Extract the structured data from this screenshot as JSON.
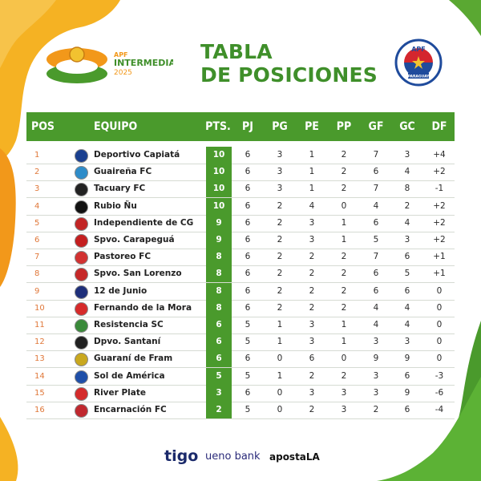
{
  "brand": {
    "league_small": "APF",
    "league_name": "INTERMEDIA",
    "league_year": "2025",
    "federation": "APF",
    "federation_band": "PARAGUAY"
  },
  "title": {
    "line1": "TABLA",
    "line2": "DE POSICIONES"
  },
  "columns": [
    "POS",
    "EQUIPO",
    "PTS.",
    "PJ",
    "PG",
    "PE",
    "PP",
    "GF",
    "GC",
    "DF"
  ],
  "rows": [
    {
      "pos": "1",
      "team": "Deportivo Capiatá",
      "pts": "10",
      "pj": "6",
      "pg": "3",
      "pe": "1",
      "pp": "2",
      "gf": "7",
      "gc": "3",
      "df": "+4",
      "badge_color": "#1a3f8f"
    },
    {
      "pos": "2",
      "team": "Guaireña FC",
      "pts": "10",
      "pj": "6",
      "pg": "3",
      "pe": "1",
      "pp": "2",
      "gf": "6",
      "gc": "4",
      "df": "+2",
      "badge_color": "#2e8cc9"
    },
    {
      "pos": "3",
      "team": "Tacuary FC",
      "pts": "10",
      "pj": "6",
      "pg": "3",
      "pe": "1",
      "pp": "2",
      "gf": "7",
      "gc": "8",
      "df": "-1",
      "badge_color": "#222222"
    },
    {
      "pos": "4",
      "team": "Rubio Ñu",
      "pts": "10",
      "pj": "6",
      "pg": "2",
      "pe": "4",
      "pp": "0",
      "gf": "4",
      "gc": "2",
      "df": "+2",
      "badge_color": "#111111"
    },
    {
      "pos": "5",
      "team": "Independiente de CG",
      "pts": "9",
      "pj": "6",
      "pg": "2",
      "pe": "3",
      "pp": "1",
      "gf": "6",
      "gc": "4",
      "df": "+2",
      "badge_color": "#c22525"
    },
    {
      "pos": "6",
      "team": "Spvo. Carapeguá",
      "pts": "9",
      "pj": "6",
      "pg": "2",
      "pe": "3",
      "pp": "1",
      "gf": "5",
      "gc": "3",
      "df": "+2",
      "badge_color": "#c41e1e"
    },
    {
      "pos": "7",
      "team": "Pastoreo FC",
      "pts": "8",
      "pj": "6",
      "pg": "2",
      "pe": "2",
      "pp": "2",
      "gf": "7",
      "gc": "6",
      "df": "+1",
      "badge_color": "#d23232"
    },
    {
      "pos": "8",
      "team": "Spvo. San Lorenzo",
      "pts": "8",
      "pj": "6",
      "pg": "2",
      "pe": "2",
      "pp": "2",
      "gf": "6",
      "gc": "5",
      "df": "+1",
      "badge_color": "#c62828"
    },
    {
      "pos": "9",
      "team": "12 de Junio",
      "pts": "8",
      "pj": "6",
      "pg": "2",
      "pe": "2",
      "pp": "2",
      "gf": "6",
      "gc": "6",
      "df": "0",
      "badge_color": "#1e2f7a"
    },
    {
      "pos": "10",
      "team": "Fernando de la Mora",
      "pts": "8",
      "pj": "6",
      "pg": "2",
      "pe": "2",
      "pp": "2",
      "gf": "4",
      "gc": "4",
      "df": "0",
      "badge_color": "#d62a2a"
    },
    {
      "pos": "11",
      "team": "Resistencia SC",
      "pts": "6",
      "pj": "5",
      "pg": "1",
      "pe": "3",
      "pp": "1",
      "gf": "4",
      "gc": "4",
      "df": "0",
      "badge_color": "#3a8a3a"
    },
    {
      "pos": "12",
      "team": "Dpvo. Santaní",
      "pts": "6",
      "pj": "5",
      "pg": "1",
      "pe": "3",
      "pp": "1",
      "gf": "3",
      "gc": "3",
      "df": "0",
      "badge_color": "#202020"
    },
    {
      "pos": "13",
      "team": "Guaraní de Fram",
      "pts": "6",
      "pj": "6",
      "pg": "0",
      "pe": "6",
      "pp": "0",
      "gf": "9",
      "gc": "9",
      "df": "0",
      "badge_color": "#c9a81e"
    },
    {
      "pos": "14",
      "team": "Sol de América",
      "pts": "5",
      "pj": "5",
      "pg": "1",
      "pe": "2",
      "pp": "2",
      "gf": "3",
      "gc": "6",
      "df": "-3",
      "badge_color": "#1f4fa8"
    },
    {
      "pos": "15",
      "team": "River Plate",
      "pts": "3",
      "pj": "6",
      "pg": "0",
      "pe": "3",
      "pp": "3",
      "gf": "3",
      "gc": "9",
      "df": "-6",
      "badge_color": "#d42b2b"
    },
    {
      "pos": "16",
      "team": "Encarnación FC",
      "pts": "2",
      "pj": "5",
      "pg": "0",
      "pe": "2",
      "pp": "3",
      "gf": "2",
      "gc": "6",
      "df": "-4",
      "badge_color": "#c0282e"
    }
  ],
  "sponsors": [
    "tigo",
    "ueno bank",
    "apostaLA"
  ],
  "colors": {
    "green": "#4a9a2c",
    "orange": "#f4a21a",
    "title_green": "#3f8f2a",
    "pos_orange": "#e0783a",
    "apf_red": "#d4262e",
    "apf_blue": "#1f4b9c"
  }
}
